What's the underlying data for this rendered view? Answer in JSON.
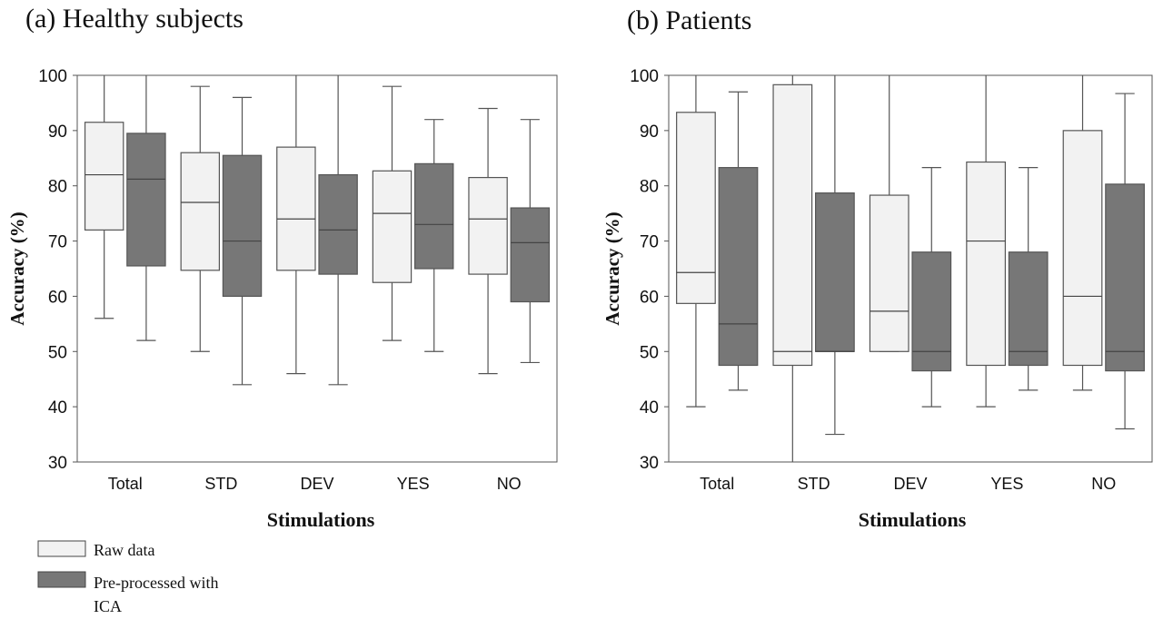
{
  "chart_data": [
    {
      "type": "box",
      "title": "(a) Healthy subjects",
      "xlabel": "Stimulations",
      "ylabel": "Accuracy (%)",
      "ylim": [
        30,
        100
      ],
      "yticks": [
        30,
        40,
        50,
        60,
        70,
        80,
        90,
        100
      ],
      "categories": [
        "Total",
        "STD",
        "DEV",
        "YES",
        "NO"
      ],
      "series": [
        {
          "name": "Raw data",
          "color": "#f2f2f2",
          "boxes": [
            {
              "min": 56,
              "q1": 72,
              "median": 82,
              "q3": 91.5,
              "max": 100
            },
            {
              "min": 50,
              "q1": 64.7,
              "median": 77,
              "q3": 86,
              "max": 98
            },
            {
              "min": 46,
              "q1": 64.7,
              "median": 74,
              "q3": 87,
              "max": 100
            },
            {
              "min": 52,
              "q1": 62.5,
              "median": 75,
              "q3": 82.7,
              "max": 98
            },
            {
              "min": 46,
              "q1": 64,
              "median": 74,
              "q3": 81.5,
              "max": 94
            }
          ]
        },
        {
          "name": "Pre-processed with ICA",
          "color": "#777777",
          "boxes": [
            {
              "min": 52,
              "q1": 65.5,
              "median": 81.2,
              "q3": 89.5,
              "max": 100
            },
            {
              "min": 44,
              "q1": 60,
              "median": 70,
              "q3": 85.5,
              "max": 96
            },
            {
              "min": 44,
              "q1": 64,
              "median": 72,
              "q3": 82,
              "max": 100
            },
            {
              "min": 50,
              "q1": 65,
              "median": 73,
              "q3": 84,
              "max": 92
            },
            {
              "min": 48,
              "q1": 59,
              "median": 69.7,
              "q3": 76,
              "max": 92
            }
          ]
        }
      ]
    },
    {
      "type": "box",
      "title": "(b) Patients",
      "xlabel": "Stimulations",
      "ylabel": "Accuracy (%)",
      "ylim": [
        30,
        100
      ],
      "yticks": [
        30,
        40,
        50,
        60,
        70,
        80,
        90,
        100
      ],
      "categories": [
        "Total",
        "STD",
        "DEV",
        "YES",
        "NO"
      ],
      "series": [
        {
          "name": "Raw data",
          "color": "#f2f2f2",
          "boxes": [
            {
              "min": 40,
              "q1": 58.7,
              "median": 64.3,
              "q3": 93.3,
              "max": 100
            },
            {
              "min": 30,
              "q1": 47.5,
              "median": 50,
              "q3": 98.3,
              "max": 100
            },
            {
              "min": 50,
              "q1": 50,
              "median": 57.3,
              "q3": 78.3,
              "max": 100
            },
            {
              "min": 40,
              "q1": 47.5,
              "median": 70,
              "q3": 84.3,
              "max": 100
            },
            {
              "min": 43,
              "q1": 47.5,
              "median": 60,
              "q3": 90,
              "max": 100
            }
          ]
        },
        {
          "name": "Pre-processed with ICA",
          "color": "#777777",
          "boxes": [
            {
              "min": 43,
              "q1": 47.5,
              "median": 55,
              "q3": 83.3,
              "max": 97
            },
            {
              "min": 35,
              "q1": 50,
              "median": 50,
              "q3": 78.7,
              "max": 100
            },
            {
              "min": 40,
              "q1": 46.5,
              "median": 50,
              "q3": 68,
              "max": 83.3
            },
            {
              "min": 43,
              "q1": 47.5,
              "median": 50,
              "q3": 68,
              "max": 83.3
            },
            {
              "min": 36,
              "q1": 46.5,
              "median": 50,
              "q3": 80.3,
              "max": 96.7
            }
          ]
        }
      ]
    }
  ],
  "legend": {
    "items": [
      {
        "label_line1": "Raw data",
        "label_line2": "",
        "color": "#f2f2f2"
      },
      {
        "label_line1": "Pre-processed with",
        "label_line2": "ICA",
        "color": "#777777"
      }
    ]
  }
}
